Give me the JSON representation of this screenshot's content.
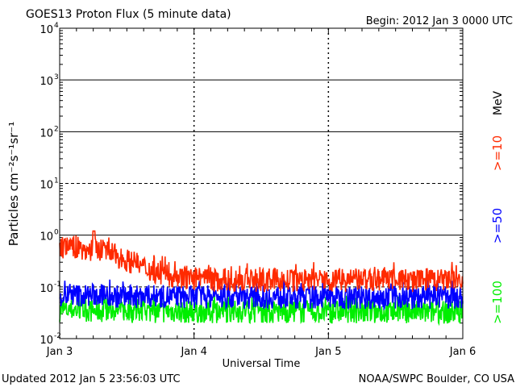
{
  "chart_data": {
    "type": "line",
    "title": "GOES13 Proton Flux (5 minute data)",
    "begin_label": "Begin: 2012 Jan 3 0000 UTC",
    "xlabel": "Universal Time",
    "ylabel": "Particles cm⁻²s⁻¹sr⁻¹",
    "y_scale": "log",
    "ylim": [
      0.01,
      10000
    ],
    "y_ticks": [
      {
        "value": 0.01,
        "base": "10",
        "exp": "-2"
      },
      {
        "value": 0.1,
        "base": "10",
        "exp": "-1"
      },
      {
        "value": 1,
        "base": "10",
        "exp": "0"
      },
      {
        "value": 10,
        "base": "10",
        "exp": "1"
      },
      {
        "value": 100,
        "base": "10",
        "exp": "2"
      },
      {
        "value": 1000,
        "base": "10",
        "exp": "3"
      },
      {
        "value": 10000,
        "base": "10",
        "exp": "4"
      }
    ],
    "x_range_days": [
      "Jan 3",
      "Jan 6"
    ],
    "x_ticks": [
      "Jan 3",
      "Jan 4",
      "Jan 5",
      "Jan 6"
    ],
    "grid": {
      "horizontal_solid": [
        1000,
        100,
        1
      ],
      "horizontal_dashed": [
        10,
        0.1
      ],
      "vertical": "dashed at day boundaries"
    },
    "units_label": "MeV",
    "series": [
      {
        "name": ">=10",
        "color": "#ff2a00",
        "levels": [
          0.55,
          0.6,
          0.5,
          0.55,
          0.45,
          0.35,
          0.28,
          0.22,
          0.18,
          0.16,
          0.15,
          0.14,
          0.13,
          0.14,
          0.13,
          0.14,
          0.13,
          0.14,
          0.13,
          0.13,
          0.14,
          0.13,
          0.14,
          0.13,
          0.14,
          0.13,
          0.15,
          0.14,
          0.13,
          0.14,
          0.13,
          0.14,
          0.13
        ],
        "peak": 1.2
      },
      {
        "name": ">=50",
        "color": "#0000ff",
        "levels": [
          0.065,
          0.07,
          0.068,
          0.07,
          0.066,
          0.065,
          0.064,
          0.066,
          0.065,
          0.064,
          0.063,
          0.065,
          0.064,
          0.063,
          0.064,
          0.063,
          0.062,
          0.064,
          0.063,
          0.062,
          0.063,
          0.064,
          0.063,
          0.062,
          0.063,
          0.062,
          0.064,
          0.063,
          0.062,
          0.063,
          0.062,
          0.063,
          0.062
        ]
      },
      {
        "name": ">=100",
        "color": "#00ee00",
        "levels": [
          0.035,
          0.036,
          0.035,
          0.034,
          0.035,
          0.034,
          0.033,
          0.034,
          0.033,
          0.034,
          0.033,
          0.034,
          0.033,
          0.034,
          0.033,
          0.034,
          0.033,
          0.032,
          0.033,
          0.034,
          0.033,
          0.032,
          0.033,
          0.034,
          0.033,
          0.032,
          0.033,
          0.034,
          0.033,
          0.032,
          0.033,
          0.032,
          0.033
        ]
      }
    ]
  },
  "footer": {
    "updated": "Updated 2012 Jan  5 23:56:03 UTC",
    "credit": "NOAA/SWPC Boulder, CO USA"
  }
}
